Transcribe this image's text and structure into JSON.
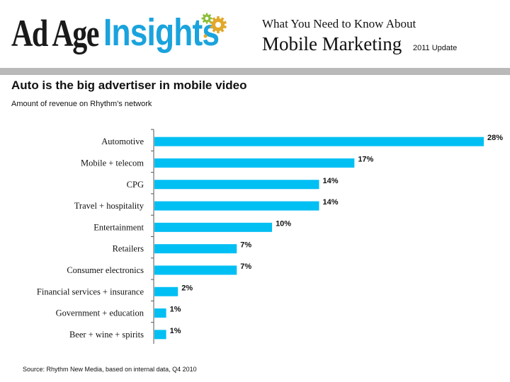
{
  "header": {
    "logo_part1": "Ad Age",
    "logo_part2": "Insights",
    "line1": "What You Need to Know About",
    "line2": "Mobile Marketing",
    "update": "2011 Update"
  },
  "colors": {
    "bar": "#00BFF3",
    "logo_blue": "#1AA3DD",
    "gear_gold": "#E2A82A",
    "gear_green": "#8DBF3B",
    "divider": "#B9B9B9"
  },
  "chart_data": {
    "type": "bar",
    "orientation": "horizontal",
    "title": "Auto is the big advertiser in mobile video",
    "subtitle": "Amount of revenue on Rhythm's network",
    "categories": [
      "Automotive",
      "Mobile + telecom",
      "CPG",
      "Travel + hospitality",
      "Entertainment",
      "Retailers",
      "Consumer electronics",
      "Financial services + insurance",
      "Government + education",
      "Beer + wine + spirits"
    ],
    "values": [
      28,
      17,
      14,
      14,
      10,
      7,
      7,
      2,
      1,
      1
    ],
    "data_labels": [
      "28%",
      "17%",
      "14%",
      "14%",
      "10%",
      "7%",
      "7%",
      "2%",
      "1%",
      "1%"
    ],
    "unit": "%",
    "xlim": [
      0,
      28
    ],
    "grid": false,
    "source": "Source: Rhythm New Media, based on internal data, Q4 2010"
  }
}
